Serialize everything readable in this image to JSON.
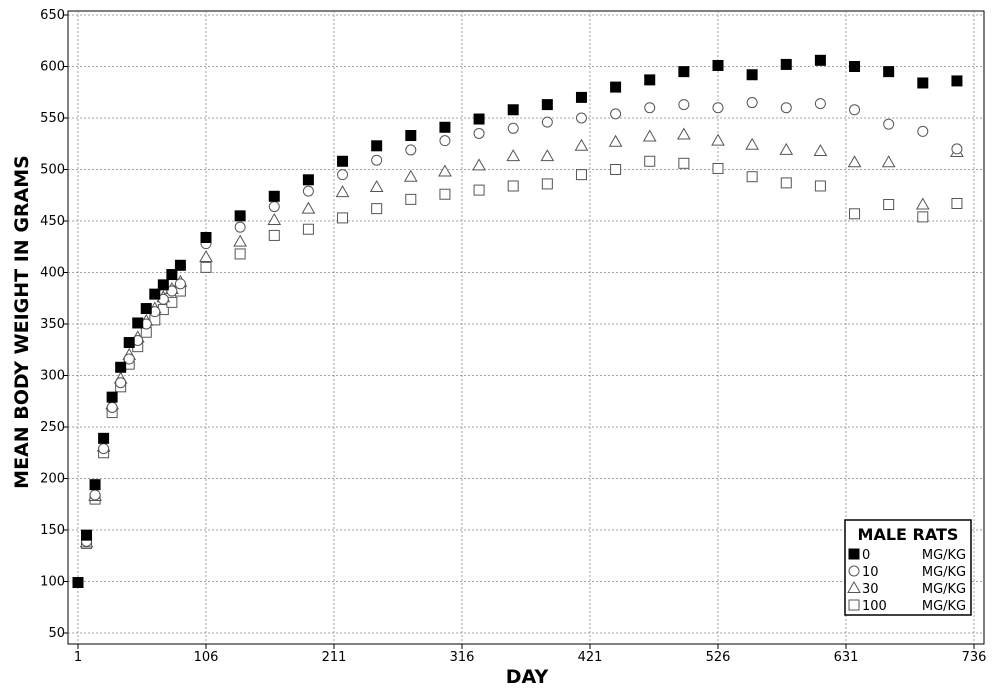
{
  "chart_data": {
    "type": "scatter",
    "xlabel": "DAY",
    "ylabel": "MEAN BODY WEIGHT IN GRAMS",
    "xlim": [
      1,
      736
    ],
    "ylim": [
      45,
      652
    ],
    "x_ticks": [
      1,
      106,
      211,
      316,
      421,
      526,
      631,
      736
    ],
    "y_ticks": [
      50,
      100,
      150,
      200,
      250,
      300,
      350,
      400,
      450,
      500,
      550,
      600,
      650
    ],
    "grid": true,
    "legend": {
      "title": "MALE RATS",
      "placement": "bottom-right",
      "entries": [
        {
          "label": "0",
          "unit": "MG/KG",
          "marker": "filled-square"
        },
        {
          "label": "10",
          "unit": "MG/KG",
          "marker": "open-circle"
        },
        {
          "label": "30",
          "unit": "MG/KG",
          "marker": "open-triangle"
        },
        {
          "label": "100",
          "unit": "MG/KG",
          "marker": "open-square"
        }
      ]
    },
    "series": [
      {
        "name": "0 MG/KG",
        "marker": "filled-square",
        "points": [
          [
            1,
            99
          ],
          [
            8,
            145
          ],
          [
            15,
            194
          ],
          [
            22,
            239
          ],
          [
            29,
            279
          ],
          [
            36,
            308
          ],
          [
            43,
            332
          ],
          [
            50,
            351
          ],
          [
            57,
            365
          ],
          [
            64,
            379
          ],
          [
            71,
            388
          ],
          [
            78,
            398
          ],
          [
            85,
            407
          ],
          [
            106,
            434
          ],
          [
            134,
            455
          ],
          [
            162,
            474
          ],
          [
            190,
            490
          ],
          [
            218,
            508
          ],
          [
            246,
            523
          ],
          [
            274,
            533
          ],
          [
            302,
            541
          ],
          [
            330,
            549
          ],
          [
            358,
            558
          ],
          [
            386,
            563
          ],
          [
            414,
            570
          ],
          [
            442,
            580
          ],
          [
            470,
            587
          ],
          [
            498,
            595
          ],
          [
            526,
            601
          ],
          [
            554,
            592
          ],
          [
            582,
            602
          ],
          [
            610,
            606
          ],
          [
            638,
            600
          ],
          [
            666,
            595
          ],
          [
            694,
            584
          ],
          [
            722,
            586
          ]
        ]
      },
      {
        "name": "10 MG/KG",
        "marker": "open-circle",
        "points": [
          [
            8,
            139
          ],
          [
            15,
            184
          ],
          [
            22,
            229
          ],
          [
            29,
            269
          ],
          [
            36,
            293
          ],
          [
            43,
            316
          ],
          [
            50,
            334
          ],
          [
            57,
            350
          ],
          [
            64,
            362
          ],
          [
            71,
            374
          ],
          [
            78,
            382
          ],
          [
            85,
            389
          ],
          [
            106,
            428
          ],
          [
            134,
            444
          ],
          [
            162,
            464
          ],
          [
            190,
            479
          ],
          [
            218,
            495
          ],
          [
            246,
            509
          ],
          [
            274,
            519
          ],
          [
            302,
            528
          ],
          [
            330,
            535
          ],
          [
            358,
            540
          ],
          [
            386,
            546
          ],
          [
            414,
            550
          ],
          [
            442,
            554
          ],
          [
            470,
            560
          ],
          [
            498,
            563
          ],
          [
            526,
            560
          ],
          [
            554,
            565
          ],
          [
            582,
            560
          ],
          [
            610,
            564
          ],
          [
            638,
            558
          ],
          [
            666,
            544
          ],
          [
            694,
            537
          ],
          [
            722,
            520
          ]
        ]
      },
      {
        "name": "30 MG/KG",
        "marker": "open-triangle",
        "points": [
          [
            8,
            138
          ],
          [
            15,
            183
          ],
          [
            22,
            231
          ],
          [
            29,
            272
          ],
          [
            36,
            297
          ],
          [
            43,
            320
          ],
          [
            50,
            337
          ],
          [
            57,
            353
          ],
          [
            64,
            365
          ],
          [
            71,
            376
          ],
          [
            78,
            384
          ],
          [
            85,
            391
          ],
          [
            106,
            415
          ],
          [
            134,
            430
          ],
          [
            162,
            451
          ],
          [
            190,
            462
          ],
          [
            218,
            478
          ],
          [
            246,
            483
          ],
          [
            274,
            493
          ],
          [
            302,
            498
          ],
          [
            330,
            504
          ],
          [
            358,
            513
          ],
          [
            386,
            513
          ],
          [
            414,
            523
          ],
          [
            442,
            527
          ],
          [
            470,
            532
          ],
          [
            498,
            534
          ],
          [
            526,
            528
          ],
          [
            554,
            524
          ],
          [
            582,
            519
          ],
          [
            610,
            518
          ],
          [
            638,
            507
          ],
          [
            666,
            507
          ],
          [
            694,
            466
          ],
          [
            722,
            517
          ]
        ]
      },
      {
        "name": "100 MG/KG",
        "marker": "open-square",
        "points": [
          [
            8,
            137
          ],
          [
            15,
            180
          ],
          [
            22,
            225
          ],
          [
            29,
            264
          ],
          [
            36,
            289
          ],
          [
            43,
            311
          ],
          [
            50,
            328
          ],
          [
            57,
            342
          ],
          [
            64,
            354
          ],
          [
            71,
            364
          ],
          [
            78,
            371
          ],
          [
            85,
            382
          ],
          [
            106,
            405
          ],
          [
            134,
            418
          ],
          [
            162,
            436
          ],
          [
            190,
            442
          ],
          [
            218,
            453
          ],
          [
            246,
            462
          ],
          [
            274,
            471
          ],
          [
            302,
            476
          ],
          [
            330,
            480
          ],
          [
            358,
            484
          ],
          [
            386,
            486
          ],
          [
            414,
            495
          ],
          [
            442,
            500
          ],
          [
            470,
            508
          ],
          [
            498,
            506
          ],
          [
            526,
            501
          ],
          [
            554,
            493
          ],
          [
            582,
            487
          ],
          [
            610,
            484
          ],
          [
            638,
            457
          ],
          [
            666,
            466
          ],
          [
            694,
            454
          ],
          [
            722,
            467
          ]
        ]
      }
    ]
  }
}
